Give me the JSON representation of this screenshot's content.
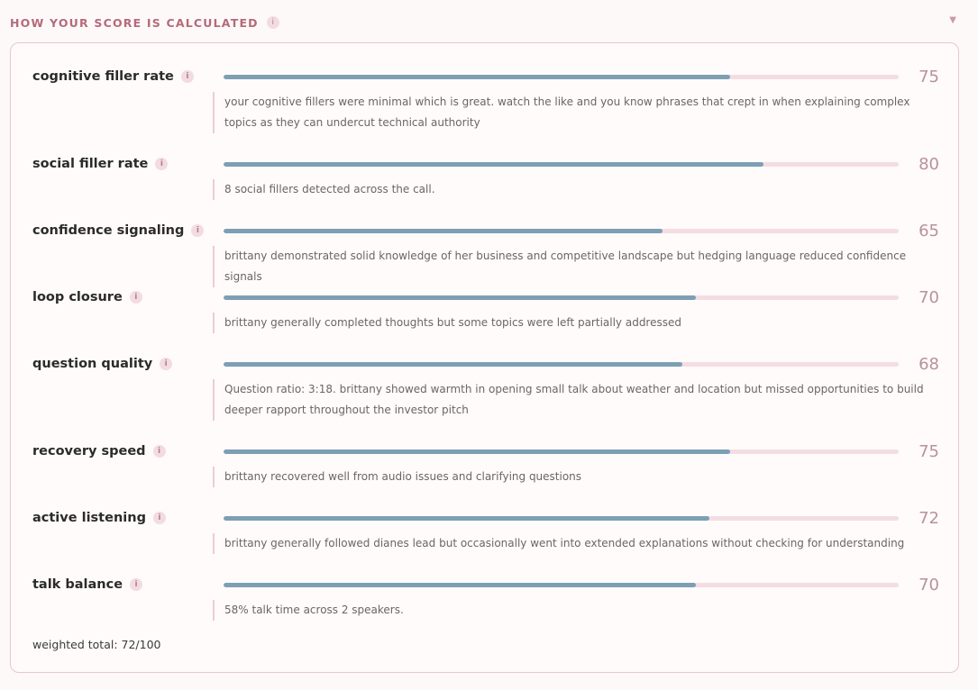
{
  "section": {
    "title": "HOW YOUR SCORE IS CALCULATED",
    "info_glyph": "i",
    "toggle_icon": "chevron-down-icon",
    "toggle_glyph": "▼"
  },
  "metrics": [
    {
      "label": "cognitive filler rate",
      "score": 75,
      "fill": 0.75,
      "description": "your cognitive fillers were minimal which is great. watch the like and you know phrases that crept in when explaining complex topics as they can undercut technical authority"
    },
    {
      "label": "social filler rate",
      "score": 80,
      "fill": 0.8,
      "description": "8 social fillers detected across the call."
    },
    {
      "label": "confidence signaling",
      "score": 65,
      "fill": 0.65,
      "description": "brittany demonstrated solid knowledge of her business and competitive landscape but hedging language reduced confidence signals"
    },
    {
      "label": "loop closure",
      "score": 70,
      "fill": 0.7,
      "description": "brittany generally completed thoughts but some topics were left partially addressed"
    },
    {
      "label": "question quality",
      "score": 68,
      "fill": 0.68,
      "description": "Question ratio: 3:18. brittany showed warmth in opening small talk about weather and location but missed opportunities to build deeper rapport throughout the investor pitch"
    },
    {
      "label": "recovery speed",
      "score": 75,
      "fill": 0.75,
      "description": "brittany recovered well from audio issues and clarifying questions"
    },
    {
      "label": "active listening",
      "score": 72,
      "fill": 0.72,
      "description": "brittany generally followed dianes lead but occasionally went into extended explanations without checking for understanding"
    },
    {
      "label": "talk balance",
      "score": 70,
      "fill": 0.7,
      "description": "58% talk time across 2 speakers."
    }
  ],
  "total": {
    "text": "weighted total: 72/100"
  },
  "colors": {
    "accent": "#b56a7a",
    "bar_fill": "#7d9fb4",
    "bar_track": "#f4dde2",
    "border": "#e5c8cf"
  }
}
